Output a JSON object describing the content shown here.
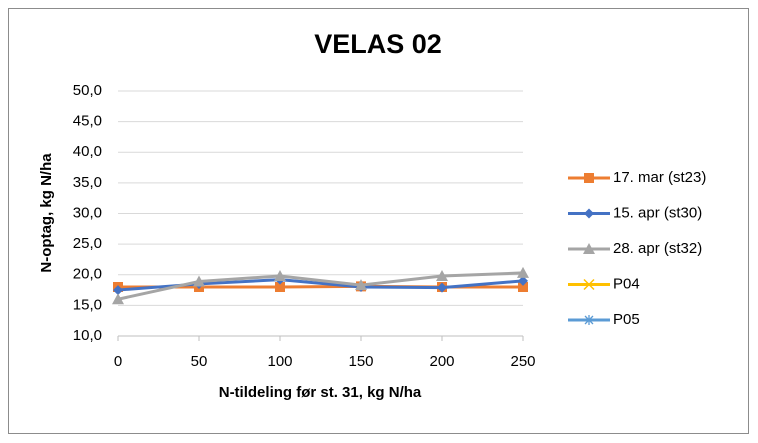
{
  "chart_data": {
    "type": "line",
    "title": "VELAS 02",
    "x_label": "N-tildeling før st. 31, kg N/ha",
    "y_label": "N-optag, kg N/ha",
    "x": [
      0,
      50,
      100,
      150,
      200,
      250
    ],
    "series": [
      {
        "name": "17. mar (st23)",
        "color": "#ed7d31",
        "marker": "square",
        "values": [
          18.0,
          18.0,
          18.0,
          18.1,
          18.0,
          18.0
        ]
      },
      {
        "name": "15. apr (st30)",
        "color": "#4472c4",
        "marker": "diamond",
        "values": [
          17.5,
          18.5,
          19.2,
          18.0,
          17.9,
          19.0
        ]
      },
      {
        "name": "28. apr (st32)",
        "color": "#a5a5a5",
        "marker": "triangle",
        "values": [
          16.0,
          18.9,
          19.8,
          18.3,
          19.8,
          20.3
        ]
      },
      {
        "name": "P04",
        "color": "#ffc000",
        "marker": "x",
        "values": [
          null,
          null,
          null,
          null,
          null,
          null
        ]
      },
      {
        "name": "P05",
        "color": "#5b9bd5",
        "marker": "star",
        "values": [
          null,
          null,
          null,
          null,
          null,
          null
        ]
      }
    ],
    "xlim": [
      0,
      250
    ],
    "xticks": [
      0,
      50,
      100,
      150,
      200,
      250
    ],
    "ylim": [
      10,
      50
    ],
    "yticks": [
      {
        "value": 10,
        "label": "10,0"
      },
      {
        "value": 15,
        "label": "15,0"
      },
      {
        "value": 20,
        "label": "20,0"
      },
      {
        "value": 25,
        "label": "25,0"
      },
      {
        "value": 30,
        "label": "30,0"
      },
      {
        "value": 35,
        "label": "35,0"
      },
      {
        "value": 40,
        "label": "40,0"
      },
      {
        "value": 45,
        "label": "45,0"
      },
      {
        "value": 50,
        "label": "50,0"
      }
    ],
    "grid": true,
    "legend": "right"
  }
}
